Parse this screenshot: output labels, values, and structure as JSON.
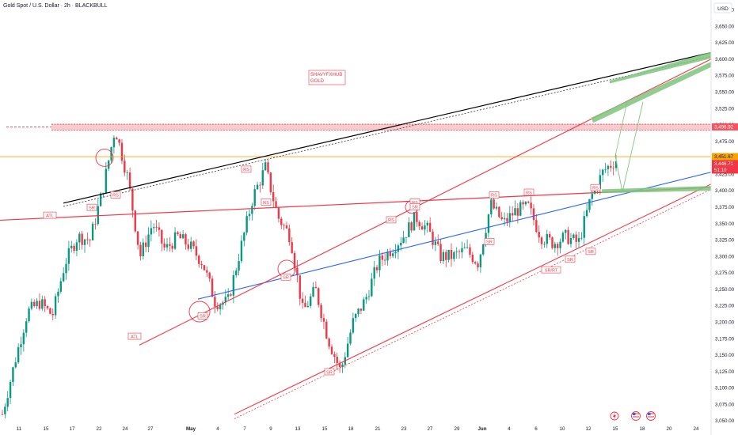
{
  "header": {
    "title": "Gold Spot / U.S. Dollar · 2h · BLACKBULL"
  },
  "watermark": {
    "line1": "SHAVYFXHUB",
    "line2": "GOLD"
  },
  "colors": {
    "up": "#089981",
    "down": "#f23645",
    "resistance": "#f23645",
    "trend_black": "#000000",
    "trend_blue": "#2962ff",
    "target_green": "#7ec47e",
    "price_line": "#f7a600",
    "price_label": "#f7525f",
    "zone_label": "#f23645"
  },
  "chart_data": {
    "type": "candlestick",
    "symbol": "Gold Spot / U.S. Dollar",
    "interval": "2h",
    "broker": "BLACKBULL",
    "currency": "USD",
    "ylim": [
      3050,
      3700
    ],
    "y_ticks": [
      "3,675.00",
      "3,650.00",
      "3,625.00",
      "3,600.00",
      "3,575.00",
      "3,550.00",
      "3,525.00",
      "3,500.00",
      "3,475.00",
      "3,450.00",
      "3,425.00",
      "3,400.00",
      "3,375.00",
      "3,350.00",
      "3,325.00",
      "3,300.00",
      "3,275.00",
      "3,250.00",
      "3,225.00",
      "3,200.00",
      "3,175.00",
      "3,150.00",
      "3,125.00",
      "3,100.00",
      "3,075.00",
      "3,050.00"
    ],
    "y_tick_values": [
      3675,
      3650,
      3625,
      3600,
      3575,
      3550,
      3525,
      3500,
      3475,
      3450,
      3425,
      3400,
      3375,
      3350,
      3325,
      3300,
      3275,
      3250,
      3225,
      3200,
      3175,
      3150,
      3125,
      3100,
      3075,
      3050
    ],
    "x_ticks": [
      "11",
      "15",
      "17",
      "22",
      "24",
      "27",
      "May",
      "4",
      "7",
      "9",
      "13",
      "15",
      "18",
      "21",
      "23",
      "27",
      "29",
      "Jun",
      "4",
      "6",
      "10",
      "12",
      "15",
      "18",
      "20",
      "24"
    ],
    "close_path": [
      {
        "d": "Apr 9",
        "v": 3060
      },
      {
        "d": "Apr 10",
        "v": 3140
      },
      {
        "d": "Apr 11",
        "v": 3215
      },
      {
        "d": "Apr 14",
        "v": 3230
      },
      {
        "d": "Apr 15",
        "v": 3210
      },
      {
        "d": "Apr 16",
        "v": 3290
      },
      {
        "d": "Apr 17",
        "v": 3330
      },
      {
        "d": "Apr 18",
        "v": 3325
      },
      {
        "d": "Apr 21",
        "v": 3400
      },
      {
        "d": "Apr 22",
        "v": 3495
      },
      {
        "d": "Apr 22b",
        "v": 3420
      },
      {
        "d": "Apr 23",
        "v": 3300
      },
      {
        "d": "Apr 24",
        "v": 3350
      },
      {
        "d": "Apr 25",
        "v": 3310
      },
      {
        "d": "Apr 28",
        "v": 3330
      },
      {
        "d": "Apr 29",
        "v": 3315
      },
      {
        "d": "Apr 30",
        "v": 3290
      },
      {
        "d": "May 1",
        "v": 3230
      },
      {
        "d": "May 2",
        "v": 3230
      },
      {
        "d": "May 5",
        "v": 3310
      },
      {
        "d": "May 6",
        "v": 3390
      },
      {
        "d": "May 7",
        "v": 3435
      },
      {
        "d": "May 8",
        "v": 3360
      },
      {
        "d": "May 9",
        "v": 3330
      },
      {
        "d": "May 12",
        "v": 3215
      },
      {
        "d": "May 13",
        "v": 3250
      },
      {
        "d": "May 14",
        "v": 3175
      },
      {
        "d": "May 15",
        "v": 3125
      },
      {
        "d": "May 16",
        "v": 3200
      },
      {
        "d": "May 19",
        "v": 3235
      },
      {
        "d": "May 20",
        "v": 3290
      },
      {
        "d": "May 21",
        "v": 3310
      },
      {
        "d": "May 22",
        "v": 3330
      },
      {
        "d": "May 23",
        "v": 3360
      },
      {
        "d": "May 26",
        "v": 3340
      },
      {
        "d": "May 27",
        "v": 3300
      },
      {
        "d": "May 28",
        "v": 3300
      },
      {
        "d": "May 29",
        "v": 3310
      },
      {
        "d": "May 30",
        "v": 3290
      },
      {
        "d": "Jun 2",
        "v": 3380
      },
      {
        "d": "Jun 3",
        "v": 3350
      },
      {
        "d": "Jun 4",
        "v": 3370
      },
      {
        "d": "Jun 5",
        "v": 3375
      },
      {
        "d": "Jun 6",
        "v": 3330
      },
      {
        "d": "Jun 9",
        "v": 3320
      },
      {
        "d": "Jun 10",
        "v": 3330
      },
      {
        "d": "Jun 11",
        "v": 3320
      },
      {
        "d": "Jun 12",
        "v": 3390
      },
      {
        "d": "Jun 13",
        "v": 3430
      },
      {
        "d": "Jun 16",
        "v": 3446.71
      }
    ],
    "price_labels": {
      "resistance": "3,496.92",
      "current_1": "3,451.67",
      "current_2": "3,446.71",
      "countdown": "51:10"
    },
    "resistance_level": 3496.92,
    "current_level": 3451.67,
    "annotations": [
      "ATL",
      "ATL",
      "RS",
      "RS",
      "RS",
      "RS",
      "RS",
      "RS",
      "RS",
      "RS",
      "SR",
      "SR",
      "SR",
      "SR",
      "SR",
      "SR",
      "SR/RT",
      "SR",
      "SR"
    ],
    "grid": false,
    "legend": "none"
  },
  "bottom_icons": [
    "lightning-icon",
    "us-flag-icon",
    "us-flag-icon"
  ]
}
